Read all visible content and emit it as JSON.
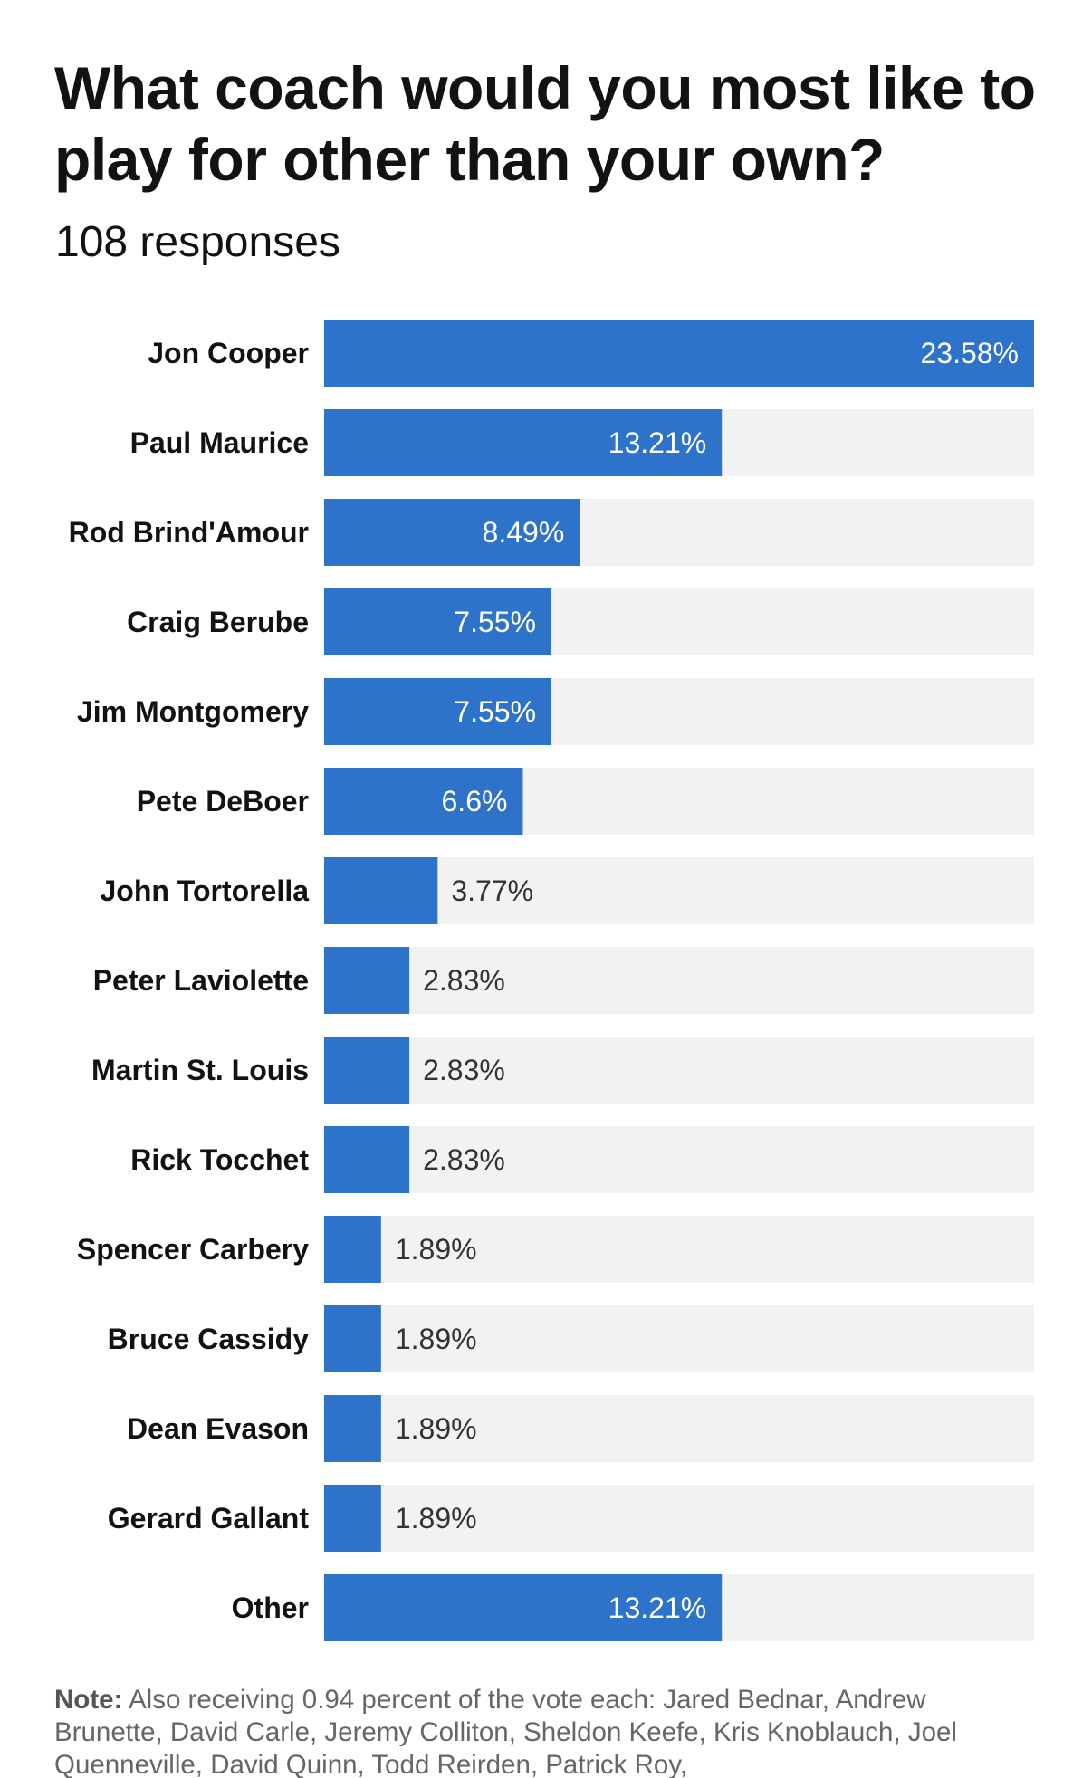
{
  "title": "What coach would you most like to play for other than your own?",
  "subtitle": "108 responses",
  "note": {
    "label": "Note:",
    "text": " Also receiving 0.94 percent of the vote each: Jared Bednar, Andrew Brunette, David Carle, Jeremy Colliton, Sheldon Keefe, Kris Knoblauch, Joel Quenneville, David Quinn, Todd Reirden, Patrick Roy,"
  },
  "colors": {
    "bar": "#2c73c9",
    "track": "#f2f2f2",
    "label_inside": "#ffffff",
    "label_outside": "#333333",
    "category": "#121212"
  },
  "chart_data": {
    "type": "bar",
    "orientation": "horizontal",
    "categories": [
      "Jon Cooper",
      "Paul Maurice",
      "Rod Brind'Amour",
      "Craig Berube",
      "Jim Montgomery",
      "Pete DeBoer",
      "John Tortorella",
      "Peter Laviolette",
      "Martin St. Louis",
      "Rick Tocchet",
      "Spencer Carbery",
      "Bruce Cassidy",
      "Dean Evason",
      "Gerard Gallant",
      "Other"
    ],
    "values": [
      23.58,
      13.21,
      8.49,
      7.55,
      7.55,
      6.6,
      3.77,
      2.83,
      2.83,
      2.83,
      1.89,
      1.89,
      1.89,
      1.89,
      13.21
    ],
    "labels": [
      "23.58%",
      "13.21%",
      "8.49%",
      "7.55%",
      "7.55%",
      "6.6%",
      "3.77%",
      "2.83%",
      "2.83%",
      "2.83%",
      "1.89%",
      "1.89%",
      "1.89%",
      "1.89%",
      "13.21%"
    ],
    "xlim": [
      0,
      23.58
    ],
    "grid": false,
    "legend": "none"
  }
}
